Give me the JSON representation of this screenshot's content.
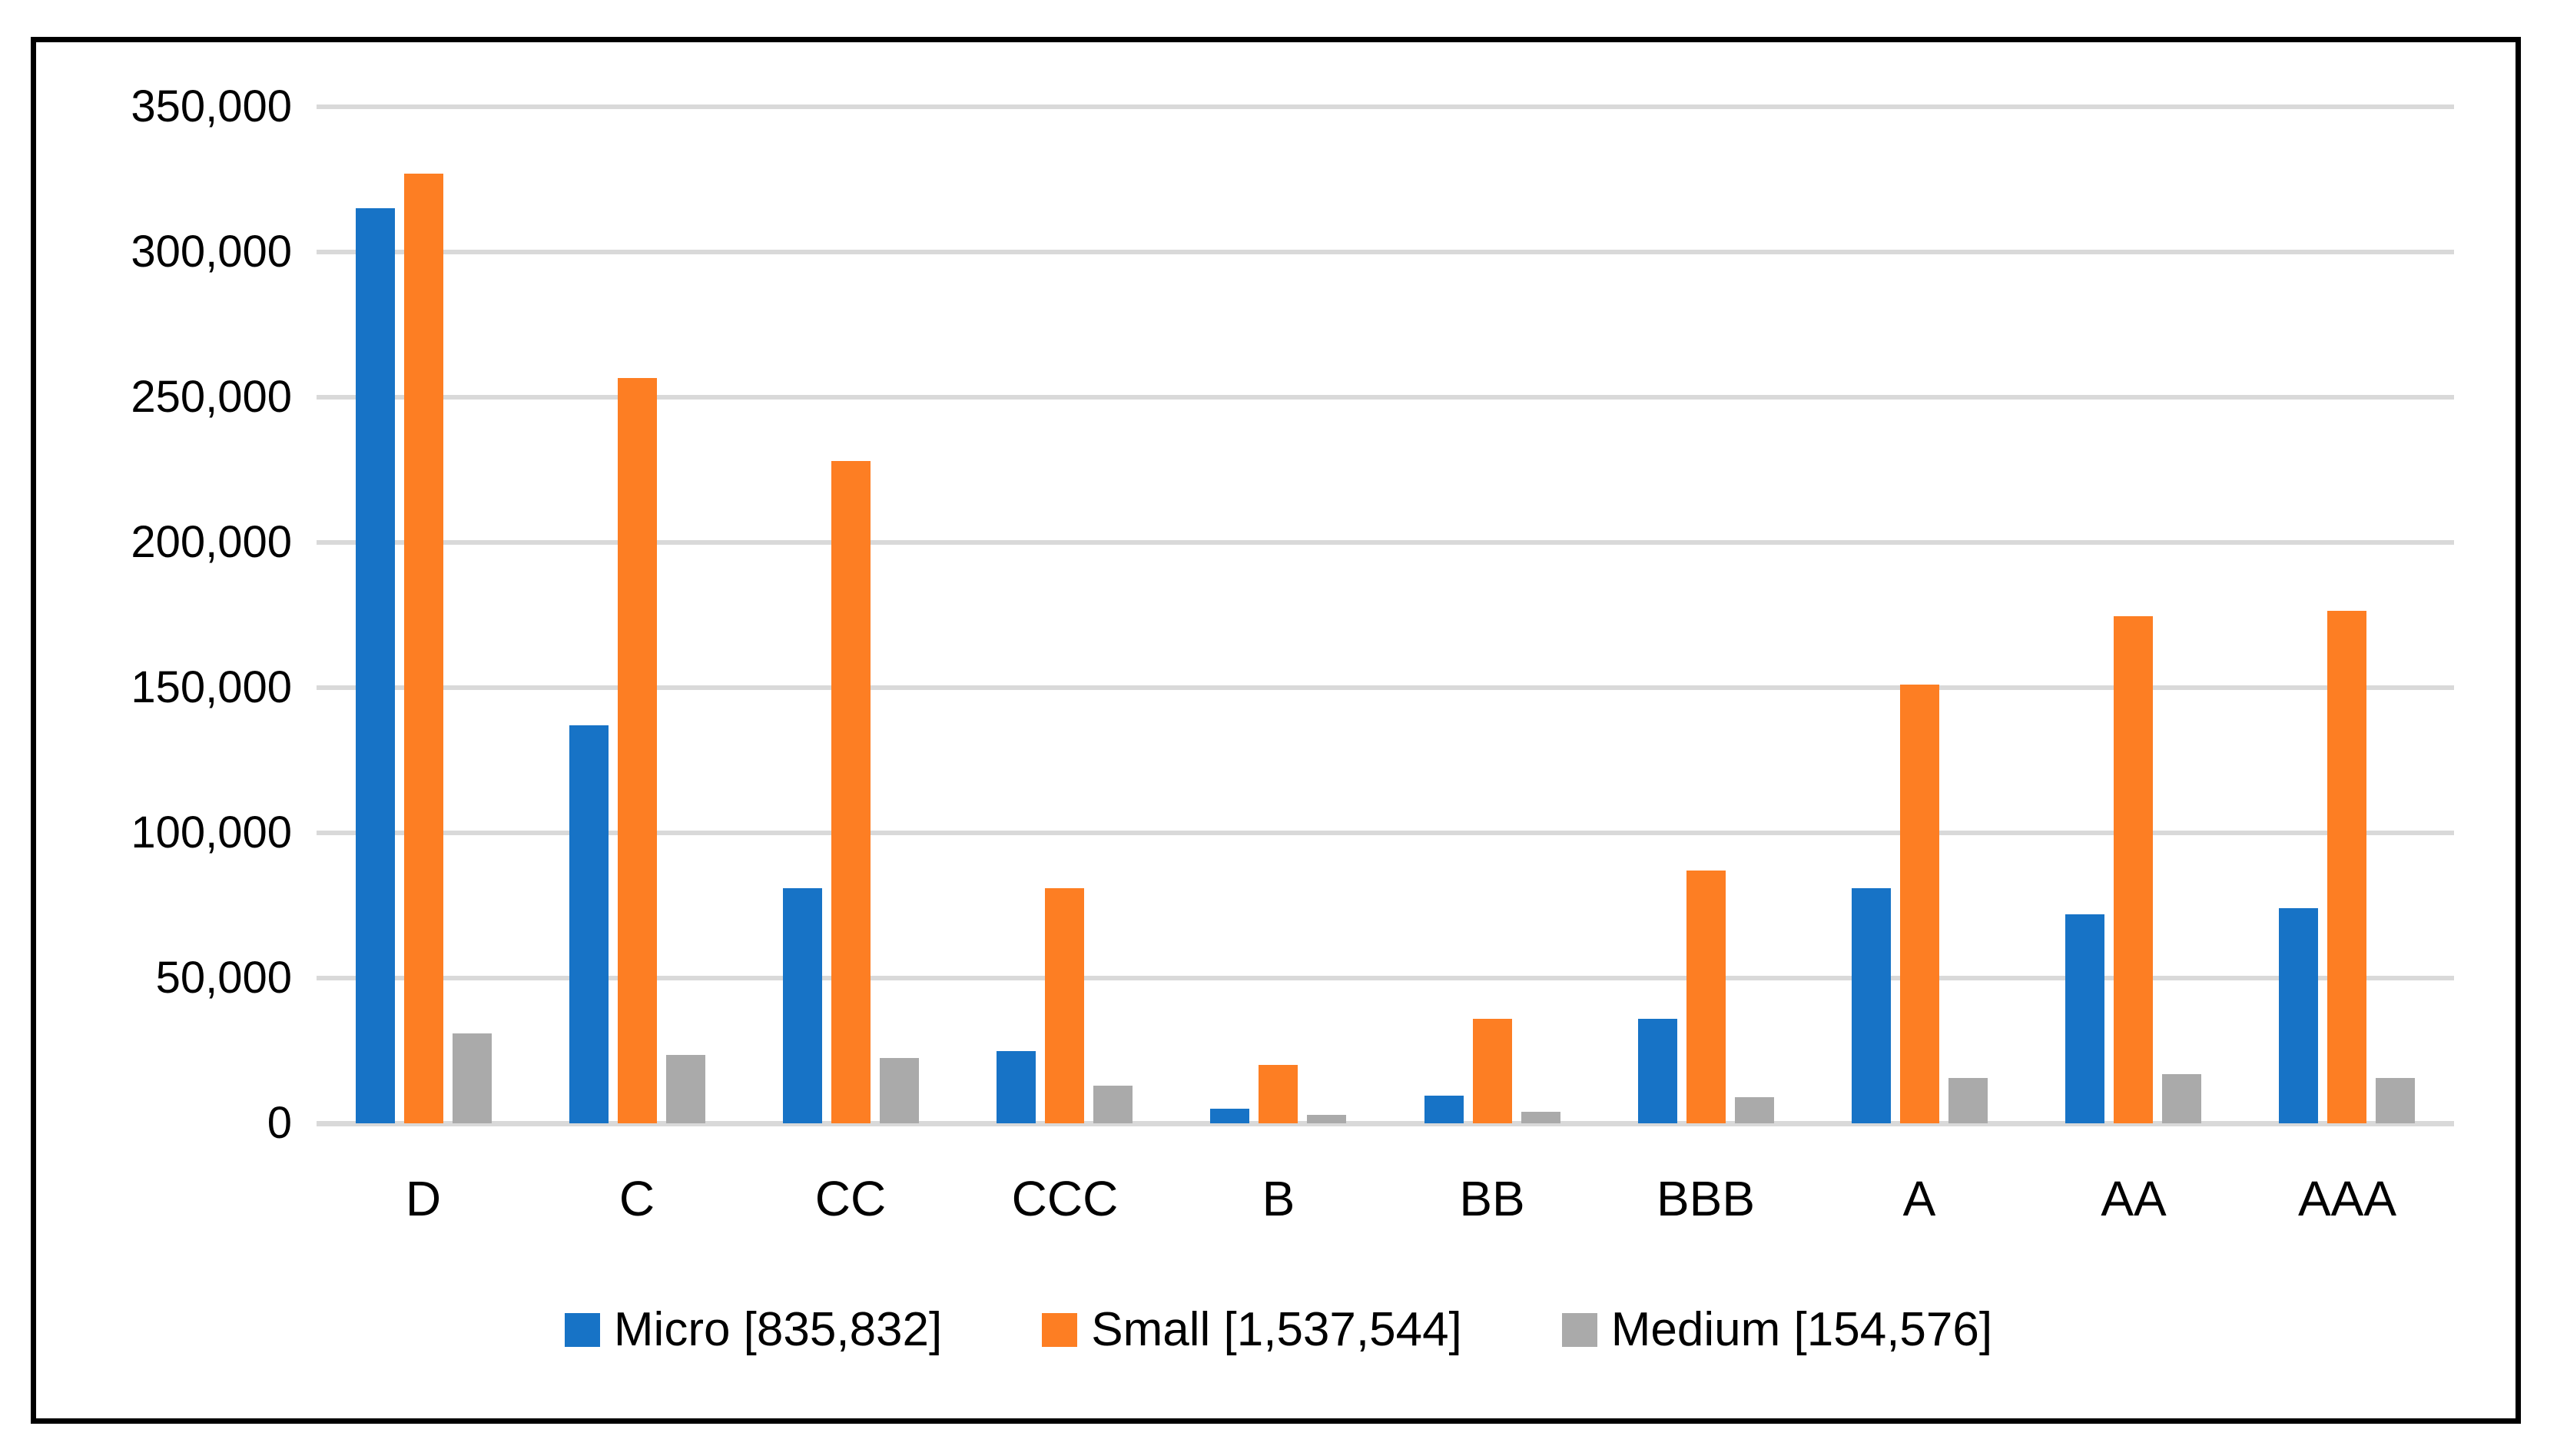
{
  "figure": {
    "background_color": "#ffffff",
    "frame_color": "#000000",
    "gridline_color": "#d9d9d9",
    "text_color": "#000000"
  },
  "chart_data": {
    "type": "bar",
    "title": "",
    "xlabel": "",
    "ylabel": "",
    "categories": [
      "D",
      "C",
      "CC",
      "CCC",
      "B",
      "BB",
      "BBB",
      "A",
      "AA",
      "AAA"
    ],
    "series": [
      {
        "name": "Micro [835,832]",
        "color": "#1773c6",
        "values": [
          315000,
          137000,
          81000,
          25000,
          5000,
          9500,
          36000,
          81000,
          72000,
          74000
        ]
      },
      {
        "name": "Small [1,537,544]",
        "color": "#fd7e23",
        "values": [
          327000,
          256500,
          228000,
          81000,
          20000,
          36000,
          87000,
          151000,
          174500,
          176500
        ]
      },
      {
        "name": "Medium [154,576]",
        "color": "#aaaaaa",
        "values": [
          31000,
          23500,
          22500,
          13000,
          3000,
          4000,
          9000,
          15500,
          17000,
          15500
        ]
      }
    ],
    "ylim": [
      0,
      350000
    ],
    "ytick_step": 50000,
    "ytick_labels": [
      "0",
      "50,000",
      "100,000",
      "150,000",
      "200,000",
      "250,000",
      "300,000",
      "350,000"
    ],
    "grid": true,
    "legend_position": "bottom"
  }
}
